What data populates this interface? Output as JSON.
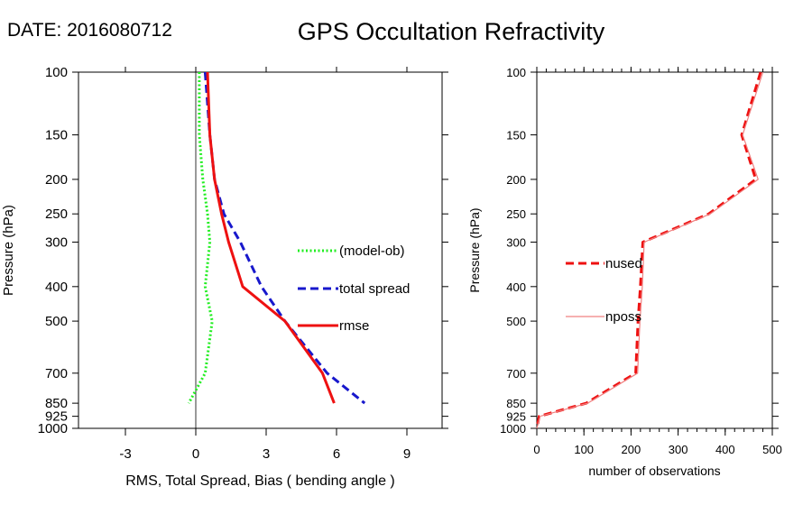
{
  "header": {
    "date_text": "DATE: 2016080712",
    "title": "GPS Occultation Refractivity"
  },
  "chart_data": [
    {
      "type": "line",
      "xlabel": "RMS, Total Spread, Bias ( bending angle )",
      "ylabel": "Pressure (hPa)",
      "xlim": [
        -5,
        10.5
      ],
      "ylim": [
        1000,
        100
      ],
      "yscale": "log",
      "xticks": [
        "-3",
        "0",
        "3",
        "6",
        "9"
      ],
      "xtick_values": [
        -3,
        0,
        3,
        6,
        9
      ],
      "yticks": [
        "100",
        "150",
        "200",
        "250",
        "300",
        "400",
        "500",
        "700",
        "850",
        "925",
        "1000"
      ],
      "ytick_values": [
        100,
        150,
        200,
        250,
        300,
        400,
        500,
        700,
        850,
        925,
        1000
      ],
      "grid": false,
      "zero_line": true,
      "legend_placement": "right-center",
      "series": [
        {
          "name": "(model-ob)",
          "color": "#22ee22",
          "style": "dotted",
          "points": [
            [
              0.15,
              100
            ],
            [
              0.15,
              150
            ],
            [
              0.3,
              200
            ],
            [
              0.5,
              250
            ],
            [
              0.6,
              300
            ],
            [
              0.4,
              400
            ],
            [
              0.7,
              500
            ],
            [
              0.4,
              700
            ],
            [
              -0.3,
              850
            ]
          ]
        },
        {
          "name": "total spread",
          "color": "#1818cc",
          "style": "dashed",
          "points": [
            [
              0.4,
              100
            ],
            [
              0.6,
              150
            ],
            [
              0.8,
              200
            ],
            [
              1.2,
              250
            ],
            [
              1.9,
              300
            ],
            [
              2.8,
              400
            ],
            [
              3.8,
              500
            ],
            [
              5.6,
              700
            ],
            [
              7.2,
              850
            ]
          ]
        },
        {
          "name": "rmse",
          "color": "#ee1111",
          "style": "solid",
          "points": [
            [
              0.5,
              100
            ],
            [
              0.6,
              150
            ],
            [
              0.8,
              200
            ],
            [
              1.1,
              250
            ],
            [
              1.4,
              300
            ],
            [
              2.0,
              400
            ],
            [
              3.8,
              500
            ],
            [
              5.4,
              700
            ],
            [
              5.9,
              850
            ]
          ]
        }
      ]
    },
    {
      "type": "line",
      "xlabel": "number of observations",
      "ylabel": "Pressure (hPa)",
      "xlim": [
        0,
        500
      ],
      "ylim": [
        1000,
        100
      ],
      "yscale": "log",
      "xticks": [
        "0",
        "100",
        "200",
        "300",
        "400",
        "500"
      ],
      "xtick_values": [
        0,
        100,
        200,
        300,
        400,
        500
      ],
      "yticks": [
        "100",
        "150",
        "200",
        "250",
        "300",
        "400",
        "500",
        "700",
        "850",
        "925",
        "1000"
      ],
      "ytick_values": [
        100,
        150,
        200,
        250,
        300,
        400,
        500,
        700,
        850,
        925,
        1000
      ],
      "grid": false,
      "legend_placement": "left-center",
      "series": [
        {
          "name": "nused",
          "color": "#ee1111",
          "style": "dashed",
          "points": [
            [
              475,
              100
            ],
            [
              435,
              150
            ],
            [
              465,
              200
            ],
            [
              365,
              250
            ],
            [
              225,
              300
            ],
            [
              220,
              400
            ],
            [
              215,
              500
            ],
            [
              210,
              700
            ],
            [
              105,
              850
            ],
            [
              5,
              925
            ],
            [
              0,
              1000
            ]
          ]
        },
        {
          "name": "nposs",
          "color": "#f08080",
          "style": "solid",
          "points": [
            [
              480,
              100
            ],
            [
              437,
              150
            ],
            [
              470,
              200
            ],
            [
              368,
              250
            ],
            [
              228,
              300
            ],
            [
              224,
              400
            ],
            [
              219,
              500
            ],
            [
              214,
              700
            ],
            [
              108,
              850
            ],
            [
              7,
              925
            ],
            [
              0,
              1000
            ]
          ]
        }
      ]
    }
  ]
}
